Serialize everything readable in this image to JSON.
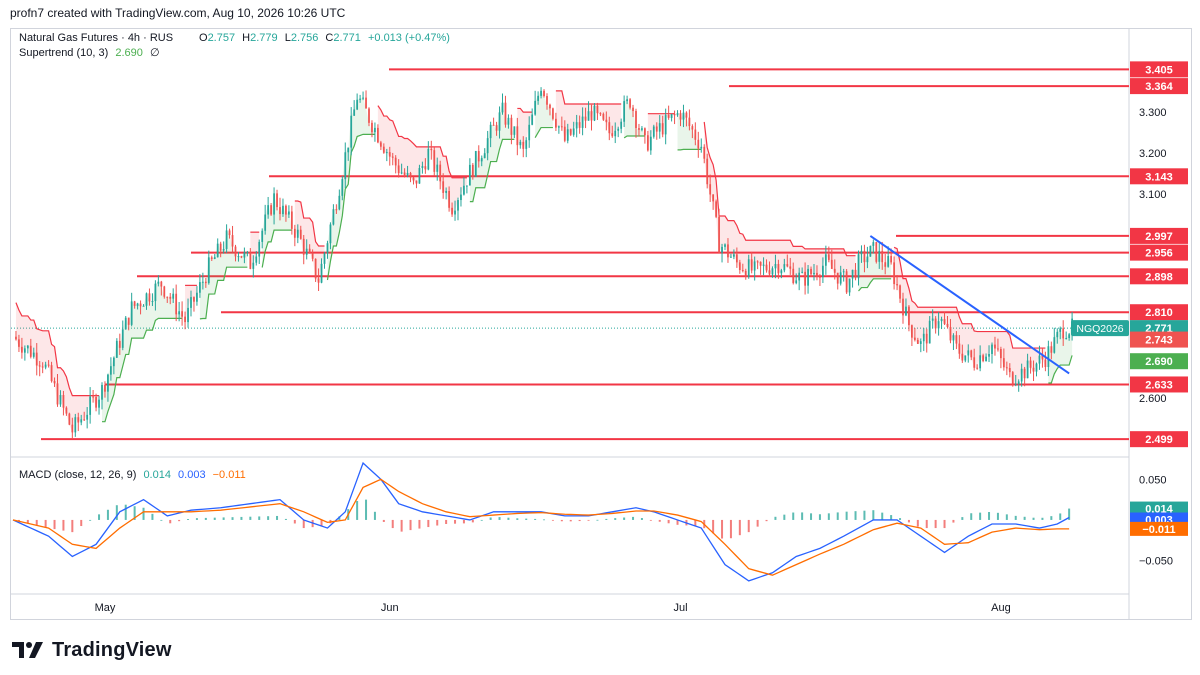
{
  "header": {
    "created_line": "profn7 created with TradingView.com, Aug 10, 2026 10:26 UTC"
  },
  "legend": {
    "symbol": "Natural Gas Futures · 4h · RUS",
    "o_label": "O",
    "o_value": "2.757",
    "h_label": "H",
    "h_value": "2.779",
    "l_label": "L",
    "l_value": "2.756",
    "c_label": "C",
    "c_value": "2.771",
    "change": "+0.013 (+0.47%)",
    "supertrend_label": "Supertrend (10, 3)",
    "supertrend_value": "2.690",
    "supertrend_flag": "∅"
  },
  "macd_legend": {
    "label": "MACD (close, 12, 26, 9)",
    "hist": "0.014",
    "macd": "0.003",
    "signal": "−0.011"
  },
  "brand": {
    "name": "TradingView",
    "logo_icon": "tradingview-logo-icon"
  },
  "colors": {
    "up": "#26a69a",
    "down": "#ef5350",
    "level_line": "#f23645",
    "trendline": "#2962ff",
    "supertrend_up": "#4caf50",
    "supertrend_down": "#f23645",
    "macd_line": "#2962ff",
    "signal_line": "#ff6d00",
    "price_badge": "#26a69a"
  },
  "chart_data": [
    {
      "type": "candlestick",
      "title": "Natural Gas Futures · 4h · RUS",
      "x_ticks": [
        "May",
        "Jun",
        "Jul",
        "Aug"
      ],
      "price_axis_ticks": [
        3.3,
        3.2,
        3.1,
        2.6
      ],
      "price_axis_tick_labels": [
        "3.300",
        "3.200",
        "3.100",
        "2.600"
      ],
      "ylim": [
        2.47,
        3.45
      ],
      "grid": false,
      "horizontal_levels": [
        {
          "value": 3.405,
          "label": "3.405"
        },
        {
          "value": 3.364,
          "label": "3.364"
        },
        {
          "value": 3.143,
          "label": "3.143"
        },
        {
          "value": 2.997,
          "label": "2.997"
        },
        {
          "value": 2.956,
          "label": "2.956"
        },
        {
          "value": 2.898,
          "label": "2.898"
        },
        {
          "value": 2.81,
          "label": "2.810"
        },
        {
          "value": 2.633,
          "label": "2.633"
        },
        {
          "value": 2.499,
          "label": "2.499"
        }
      ],
      "badges": [
        {
          "label": "NGQ2026",
          "value": "2.771"
        },
        {
          "label": "",
          "value": "2.743"
        },
        {
          "label": "",
          "value": "2.690"
        }
      ],
      "price_path": [
        [
          0,
          2.75
        ],
        [
          10,
          2.69
        ],
        [
          20,
          2.52
        ],
        [
          30,
          2.62
        ],
        [
          40,
          2.82
        ],
        [
          50,
          2.88
        ],
        [
          58,
          2.79
        ],
        [
          66,
          2.92
        ],
        [
          72,
          2.99
        ],
        [
          80,
          2.93
        ],
        [
          88,
          3.09
        ],
        [
          96,
          3.0
        ],
        [
          103,
          2.89
        ],
        [
          110,
          3.12
        ],
        [
          116,
          3.34
        ],
        [
          122,
          3.26
        ],
        [
          128,
          3.18
        ],
        [
          135,
          3.12
        ],
        [
          140,
          3.2
        ],
        [
          148,
          3.07
        ],
        [
          156,
          3.18
        ],
        [
          165,
          3.3
        ],
        [
          172,
          3.2
        ],
        [
          178,
          3.37
        ],
        [
          186,
          3.23
        ],
        [
          195,
          3.3
        ],
        [
          201,
          3.25
        ],
        [
          208,
          3.33
        ],
        [
          213,
          3.22
        ],
        [
          218,
          3.26
        ],
        [
          225,
          3.3
        ],
        [
          232,
          3.22
        ],
        [
          238,
          2.98
        ],
        [
          244,
          2.93
        ],
        [
          250,
          2.91
        ],
        [
          258,
          2.93
        ],
        [
          266,
          2.89
        ],
        [
          274,
          2.93
        ],
        [
          281,
          2.88
        ],
        [
          286,
          2.94
        ],
        [
          290,
          2.96
        ],
        [
          296,
          2.92
        ],
        [
          302,
          2.78
        ],
        [
          306,
          2.73
        ],
        [
          312,
          2.8
        ],
        [
          318,
          2.72
        ],
        [
          324,
          2.69
        ],
        [
          330,
          2.73
        ],
        [
          336,
          2.65
        ],
        [
          342,
          2.67
        ],
        [
          348,
          2.7
        ],
        [
          354,
          2.77
        ]
      ],
      "trendline": {
        "from": [
          289,
          2.997
        ],
        "to": [
          356,
          2.66
        ]
      }
    },
    {
      "type": "line",
      "title": "MACD (close, 12, 26, 9)",
      "y_ticks": [
        0.05,
        -0.05
      ],
      "y_tick_labels": [
        "0.050",
        "−0.050"
      ],
      "ylim": [
        -0.085,
        0.075
      ],
      "last_values": {
        "histogram": 0.014,
        "macd": 0.003,
        "signal": -0.011
      },
      "macd_path": [
        [
          0,
          0.0
        ],
        [
          12,
          -0.02
        ],
        [
          20,
          -0.045
        ],
        [
          28,
          -0.03
        ],
        [
          36,
          0.01
        ],
        [
          44,
          0.025
        ],
        [
          52,
          0.005
        ],
        [
          60,
          0.012
        ],
        [
          70,
          0.015
        ],
        [
          80,
          0.02
        ],
        [
          90,
          0.025
        ],
        [
          98,
          0.0
        ],
        [
          106,
          -0.01
        ],
        [
          112,
          0.01
        ],
        [
          118,
          0.07
        ],
        [
          124,
          0.05
        ],
        [
          130,
          0.02
        ],
        [
          138,
          0.01
        ],
        [
          146,
          0.005
        ],
        [
          154,
          0.0
        ],
        [
          162,
          0.01
        ],
        [
          170,
          0.01
        ],
        [
          178,
          0.01
        ],
        [
          186,
          0.005
        ],
        [
          194,
          0.005
        ],
        [
          202,
          0.01
        ],
        [
          210,
          0.015
        ],
        [
          216,
          0.01
        ],
        [
          224,
          0.0
        ],
        [
          232,
          -0.01
        ],
        [
          240,
          -0.055
        ],
        [
          248,
          -0.075
        ],
        [
          256,
          -0.065
        ],
        [
          264,
          -0.045
        ],
        [
          272,
          -0.035
        ],
        [
          280,
          -0.02
        ],
        [
          290,
          0.0
        ],
        [
          298,
          0.0
        ],
        [
          306,
          -0.02
        ],
        [
          314,
          -0.04
        ],
        [
          322,
          -0.02
        ],
        [
          330,
          -0.005
        ],
        [
          338,
          -0.005
        ],
        [
          346,
          -0.01
        ],
        [
          352,
          -0.005
        ],
        [
          356,
          0.003
        ]
      ],
      "signal_path": [
        [
          0,
          0.0
        ],
        [
          12,
          -0.01
        ],
        [
          20,
          -0.03
        ],
        [
          28,
          -0.035
        ],
        [
          36,
          -0.01
        ],
        [
          44,
          0.01
        ],
        [
          52,
          0.01
        ],
        [
          60,
          0.01
        ],
        [
          70,
          0.012
        ],
        [
          80,
          0.016
        ],
        [
          90,
          0.02
        ],
        [
          98,
          0.01
        ],
        [
          106,
          -0.003
        ],
        [
          112,
          0.0
        ],
        [
          118,
          0.04
        ],
        [
          124,
          0.05
        ],
        [
          130,
          0.035
        ],
        [
          138,
          0.02
        ],
        [
          146,
          0.01
        ],
        [
          154,
          0.004
        ],
        [
          162,
          0.006
        ],
        [
          170,
          0.008
        ],
        [
          178,
          0.009
        ],
        [
          186,
          0.007
        ],
        [
          194,
          0.006
        ],
        [
          202,
          0.008
        ],
        [
          210,
          0.011
        ],
        [
          216,
          0.011
        ],
        [
          224,
          0.006
        ],
        [
          232,
          -0.002
        ],
        [
          240,
          -0.03
        ],
        [
          248,
          -0.06
        ],
        [
          256,
          -0.068
        ],
        [
          264,
          -0.055
        ],
        [
          272,
          -0.042
        ],
        [
          280,
          -0.03
        ],
        [
          290,
          -0.012
        ],
        [
          298,
          -0.004
        ],
        [
          306,
          -0.01
        ],
        [
          314,
          -0.03
        ],
        [
          322,
          -0.028
        ],
        [
          330,
          -0.015
        ],
        [
          338,
          -0.01
        ],
        [
          346,
          -0.012
        ],
        [
          352,
          -0.011
        ],
        [
          356,
          -0.011
        ]
      ]
    }
  ]
}
